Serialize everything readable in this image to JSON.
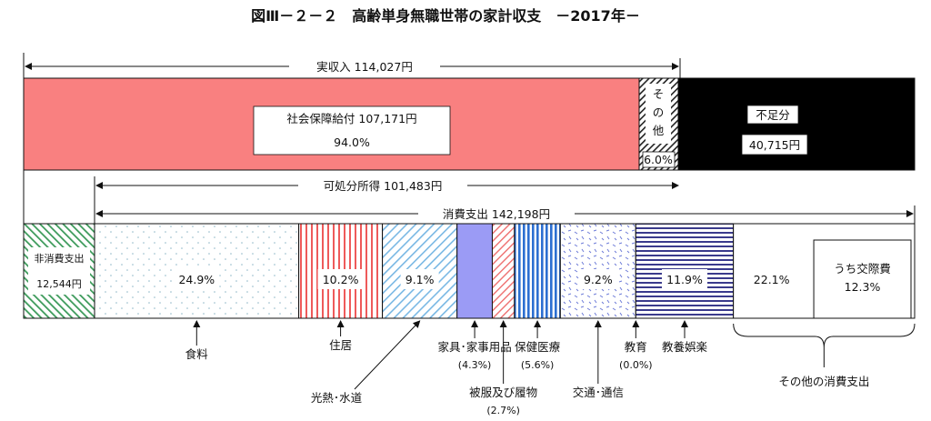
{
  "title": "図Ⅲ－２－２　高齢単身無職世帯の家計収支　－2017年－",
  "chart_data": {
    "type": "bar",
    "income": {
      "label": "実収入 114,027円",
      "total": 114027,
      "segments": [
        {
          "name": "社会保障給付",
          "label": "社会保障給付 107,171円",
          "value": 107171,
          "pct_label": "94.0%",
          "color": "#f98080"
        },
        {
          "name": "その他",
          "label": "その他",
          "pct_label": "6.0%",
          "value": 6856
        }
      ],
      "shortfall": {
        "label": "不足分",
        "value_label": "40,715円",
        "value": 40715
      }
    },
    "disposable": {
      "label": "可処分所得 101,483円",
      "value": 101483
    },
    "consumption": {
      "label": "消費支出 142,198円",
      "value": 142198
    },
    "non_consumption": {
      "label": "非消費支出",
      "value_label": "12,544円",
      "value": 12544
    },
    "categories": [
      {
        "name": "食料",
        "pct": 24.9,
        "pct_label": "24.9%",
        "bottom_label": "食料"
      },
      {
        "name": "住居",
        "pct": 10.2,
        "pct_label": "10.2%",
        "bottom_label": "住居"
      },
      {
        "name": "光熱・水道",
        "pct": 9.1,
        "pct_label": "9.1%",
        "bottom_label": "光熱･水道"
      },
      {
        "name": "家具・家事用品",
        "pct": 4.3,
        "bottom_label": "家具･家事用品",
        "sub_label": "(4.3%)"
      },
      {
        "name": "被服及び履物",
        "pct": 2.7,
        "bottom_label": "被服及び履物",
        "sub_label": "(2.7%)"
      },
      {
        "name": "保健医療",
        "pct": 5.6,
        "bottom_label": "保健医療",
        "sub_label": "(5.6%)"
      },
      {
        "name": "交通・通信",
        "pct": 9.2,
        "pct_label": "9.2%",
        "bottom_label": "交通･通信"
      },
      {
        "name": "教育",
        "pct": 0.0,
        "bottom_label": "教育",
        "sub_label": "(0.0%)"
      },
      {
        "name": "教養娯楽",
        "pct": 11.9,
        "pct_label": "11.9%",
        "bottom_label": "教養娯楽"
      },
      {
        "name": "その他の消費支出",
        "pct": 22.1,
        "pct_label": "22.1%",
        "bottom_label": "その他の消費支出",
        "inner": {
          "label": "うち交際費",
          "pct_label": "12.3%",
          "pct": 12.3
        }
      }
    ]
  }
}
